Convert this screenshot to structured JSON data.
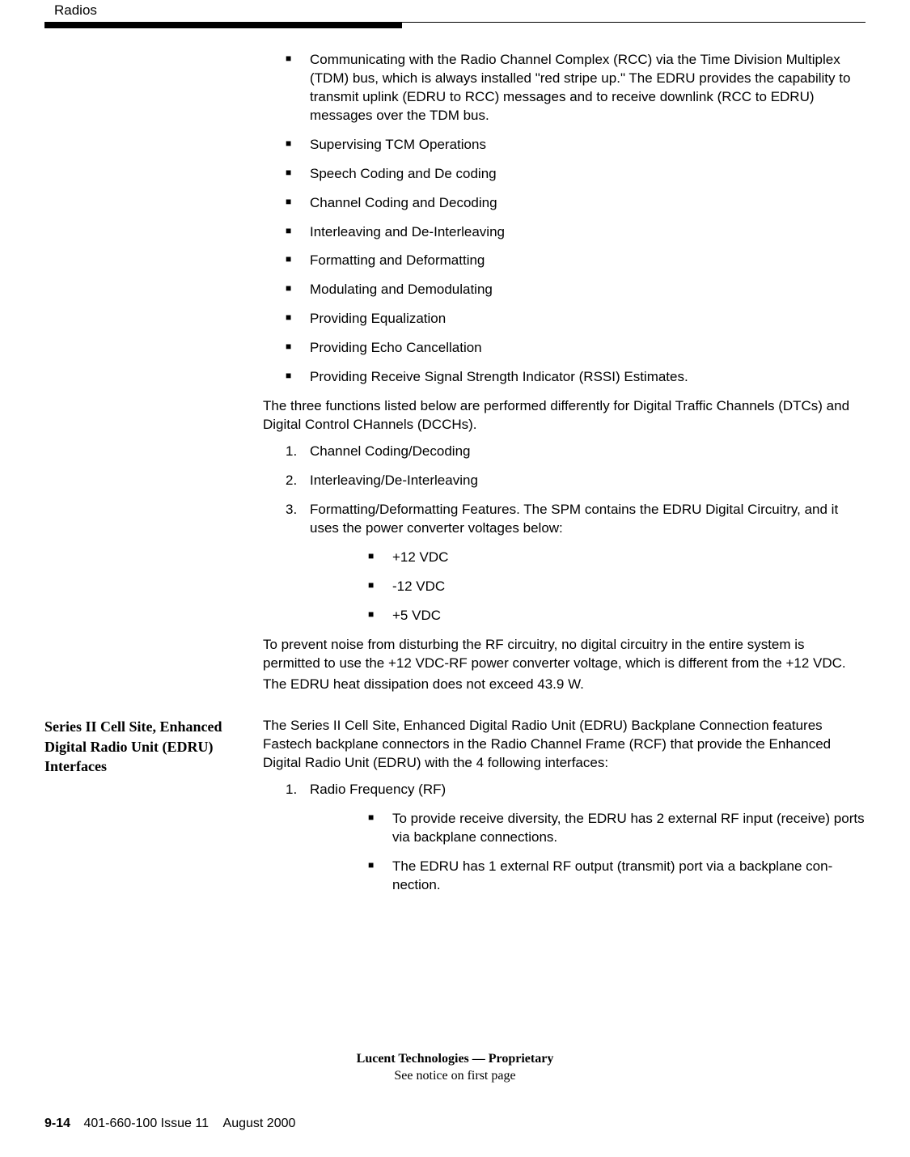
{
  "header": {
    "label": "Radios"
  },
  "body": {
    "bullets1": [
      "Communicating with the Radio Channel Complex (RCC) via the Time Division Multiplex (TDM) bus, which is always installed \"red stripe up.\" The EDRU provides the capability to transmit uplink (EDRU to RCC) messages and to receive downlink (RCC to EDRU) messages over the TDM bus.",
      "Supervising TCM Operations",
      "Speech Coding and De coding",
      "Channel Coding and Decoding",
      "Interleaving and De-Interleaving",
      "Formatting and Deformatting",
      "Modulating and Demodulating",
      "Providing Equalization",
      "Providing Echo Cancellation",
      "Providing Receive Signal Strength Indicator (RSSI) Estimates."
    ],
    "para1": "The three functions listed below are performed differently for Digital Traffic Channels (DTCs) and Digital Control CHannels (DCCHs).",
    "numlist1": [
      "Channel Coding/Decoding",
      "Interleaving/De-Interleaving",
      "Formatting/Deformatting Features. The SPM contains the EDRU Digital Circuitry, and it uses the power converter voltages below:"
    ],
    "voltages": [
      "+12 VDC",
      "-12 VDC",
      "+5 VDC"
    ],
    "para2": "To prevent noise from disturbing the RF circuitry, no digital circuitry in the entire system is permitted to use the +12 VDC-RF power converter voltage, which is different from the +12 VDC.",
    "para3": "The EDRU heat dissipation does not exceed 43.9 W."
  },
  "section2": {
    "heading": "Series II Cell Site, Enhanced Digital Radio Unit (EDRU) Interfaces",
    "intro": "The Series II Cell Site, Enhanced Digital Radio Unit (EDRU) Backplane Connection features Fastech backplane connectors in the Radio Channel Frame (RCF) that provide the Enhanced Digital Radio Unit (EDRU) with the 4 following interfaces:",
    "numlist": [
      "Radio Frequency (RF)"
    ],
    "rf_bullets": [
      "To provide receive diversity, the EDRU has 2 external RF input (receive) ports via backplane connections.",
      "The EDRU has 1 external RF output (transmit) port via a backplane con-nection."
    ]
  },
  "footer": {
    "line1": "Lucent Technologies — Proprietary",
    "line2": "See notice on first page",
    "page": "9-14",
    "issue": "401-660-100 Issue 11",
    "date": "August 2000"
  }
}
